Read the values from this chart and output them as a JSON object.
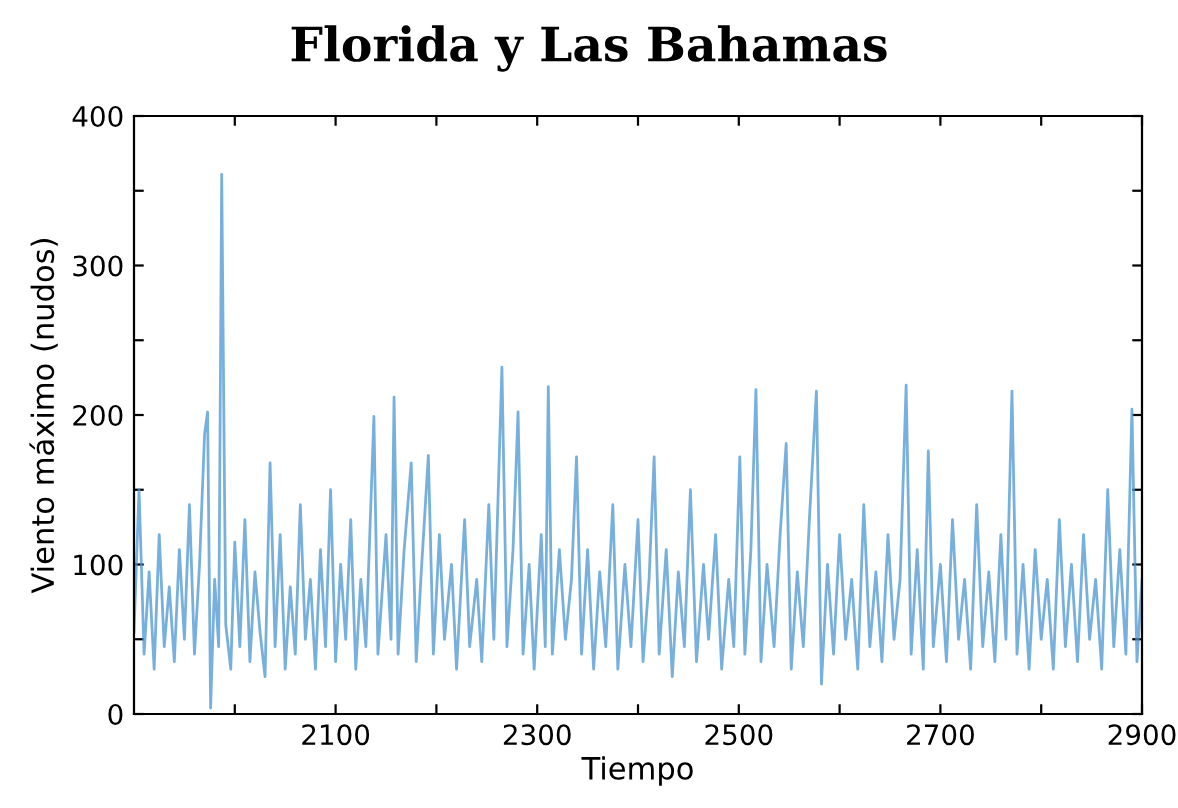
{
  "chart_data": {
    "type": "line",
    "title": "Florida y Las Bahamas",
    "xlabel": "Tiempo",
    "ylabel": "Viento máximo (nudos)",
    "xlim": [
      1900,
      2900
    ],
    "ylim": [
      0,
      400
    ],
    "xticks": [
      {
        "value": 2000,
        "label": null
      },
      2100,
      {
        "value": 2200,
        "label": null
      },
      2300,
      {
        "value": 2400,
        "label": null
      },
      2500,
      {
        "value": 2600,
        "label": null
      },
      2700,
      {
        "value": 2800,
        "label": null
      },
      2900
    ],
    "yticks": [
      0,
      {
        "value": 50,
        "label": null
      },
      100,
      {
        "value": 150,
        "label": null
      },
      200,
      {
        "value": 250,
        "label": null
      },
      300,
      {
        "value": 350,
        "label": null
      },
      400
    ],
    "grid": false,
    "legend": false,
    "marker": "none",
    "line_style": "solid",
    "series": [
      {
        "color": "#4a94d2",
        "x": [
          1900,
          1905,
          1910,
          1915,
          1920,
          1925,
          1930,
          1935,
          1940,
          1945,
          1950,
          1955,
          1960,
          1965,
          1970,
          1973,
          1976,
          1980,
          1984,
          1987,
          1991,
          1996,
          2000,
          2005,
          2010,
          2015,
          2020,
          2025,
          2030,
          2035,
          2040,
          2045,
          2050,
          2055,
          2060,
          2065,
          2070,
          2075,
          2080,
          2085,
          2090,
          2095,
          2100,
          2105,
          2110,
          2115,
          2120,
          2125,
          2130,
          2138,
          2142,
          2150,
          2155,
          2158,
          2162,
          2168,
          2175,
          2180,
          2185,
          2192,
          2197,
          2203,
          2208,
          2215,
          2220,
          2228,
          2233,
          2240,
          2245,
          2252,
          2257,
          2265,
          2270,
          2276,
          2281,
          2286,
          2292,
          2297,
          2304,
          2308,
          2311,
          2315,
          2322,
          2328,
          2334,
          2339,
          2344,
          2350,
          2356,
          2362,
          2368,
          2375,
          2380,
          2387,
          2393,
          2400,
          2405,
          2411,
          2416,
          2421,
          2428,
          2434,
          2440,
          2446,
          2452,
          2458,
          2465,
          2470,
          2477,
          2483,
          2490,
          2495,
          2501,
          2506,
          2512,
          2517,
          2522,
          2528,
          2535,
          2541,
          2547,
          2552,
          2558,
          2564,
          2570,
          2577,
          2582,
          2588,
          2594,
          2600,
          2606,
          2612,
          2618,
          2624,
          2630,
          2636,
          2642,
          2648,
          2654,
          2660,
          2666,
          2671,
          2677,
          2683,
          2688,
          2693,
          2700,
          2706,
          2712,
          2718,
          2724,
          2730,
          2736,
          2742,
          2748,
          2754,
          2760,
          2765,
          2771,
          2776,
          2782,
          2788,
          2794,
          2800,
          2806,
          2812,
          2818,
          2824,
          2830,
          2836,
          2842,
          2848,
          2854,
          2860,
          2866,
          2872,
          2878,
          2884,
          2890,
          2895,
          2900
        ],
        "values": [
          55,
          150,
          40,
          95,
          30,
          120,
          45,
          85,
          35,
          110,
          50,
          140,
          40,
          100,
          187,
          202,
          4,
          90,
          45,
          361,
          60,
          30,
          115,
          45,
          130,
          35,
          95,
          55,
          25,
          168,
          45,
          120,
          30,
          85,
          40,
          140,
          50,
          90,
          30,
          110,
          45,
          150,
          35,
          100,
          50,
          130,
          30,
          90,
          45,
          199,
          40,
          120,
          50,
          212,
          40,
          110,
          168,
          35,
          95,
          173,
          40,
          120,
          50,
          100,
          30,
          130,
          45,
          90,
          35,
          140,
          50,
          232,
          45,
          110,
          202,
          40,
          100,
          30,
          120,
          45,
          219,
          40,
          110,
          50,
          90,
          172,
          40,
          110,
          30,
          95,
          45,
          140,
          30,
          100,
          45,
          130,
          35,
          90,
          172,
          40,
          110,
          25,
          95,
          45,
          150,
          35,
          100,
          50,
          120,
          30,
          90,
          45,
          172,
          40,
          110,
          217,
          35,
          100,
          45,
          120,
          181,
          30,
          95,
          45,
          130,
          216,
          20,
          100,
          40,
          120,
          50,
          90,
          30,
          140,
          45,
          95,
          35,
          120,
          50,
          90,
          220,
          40,
          110,
          30,
          176,
          45,
          100,
          35,
          130,
          50,
          90,
          30,
          140,
          45,
          95,
          35,
          120,
          50,
          216,
          40,
          100,
          30,
          110,
          50,
          90,
          30,
          130,
          45,
          100,
          35,
          120,
          50,
          90,
          30,
          150,
          45,
          110,
          40,
          204,
          35,
          90
        ]
      }
    ]
  }
}
